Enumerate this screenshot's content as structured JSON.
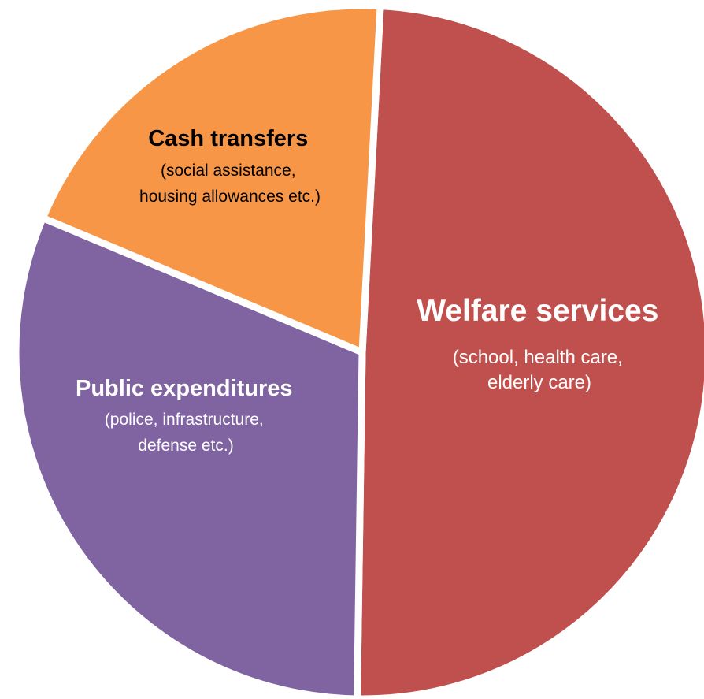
{
  "chart_data": {
    "type": "pie",
    "title": "",
    "start_angle_deg": 3,
    "direction": "clockwise",
    "slices": [
      {
        "name": "Welfare services",
        "detail": [
          "(school, health care,",
          "elderly care)"
        ],
        "value": 49.4,
        "color": "#C0504D",
        "label_color": "#FFFFFF"
      },
      {
        "name": "Public expenditures",
        "detail": [
          "(police, infrastructure,",
          "defense etc.)"
        ],
        "value": 31.1,
        "color": "#8064A2",
        "label_color": "#FFFFFF"
      },
      {
        "name": "Cash transfers",
        "detail": [
          "(social assistance,",
          "housing allowances etc.)"
        ],
        "value": 19.5,
        "color": "#F79646",
        "label_color": "#000000"
      }
    ]
  }
}
